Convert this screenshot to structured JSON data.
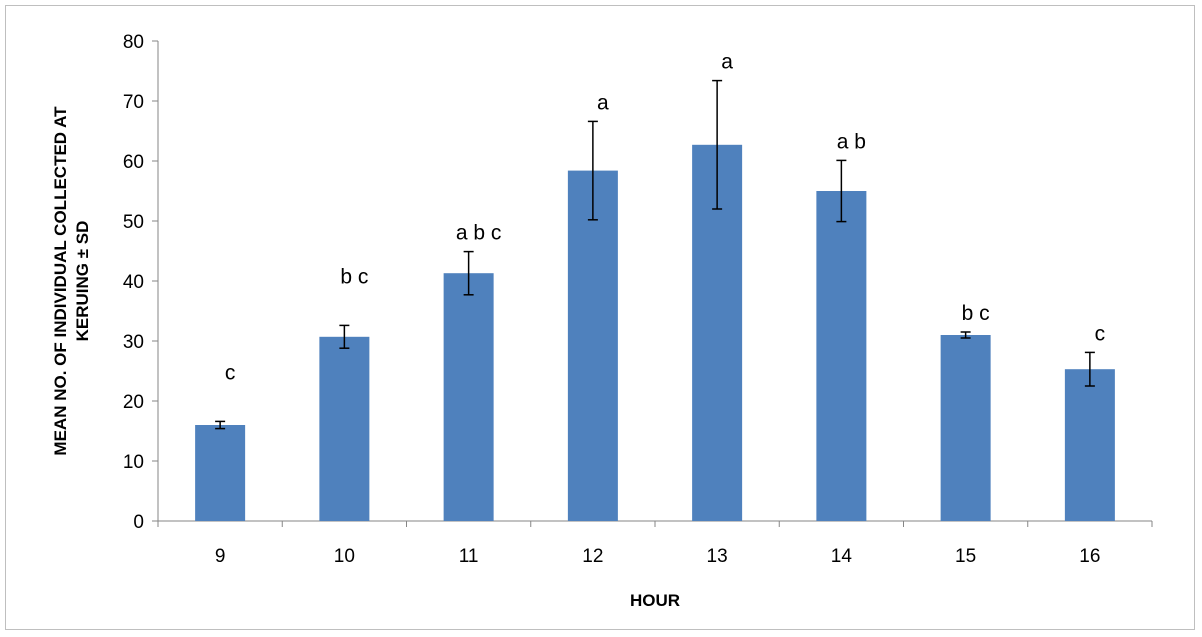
{
  "chart_data": {
    "type": "bar",
    "title": "",
    "xlabel": "HOUR",
    "ylabel_line1": "MEAN NO. OF INDIVIDUAL COLLECTED AT",
    "ylabel_line2": "KERUING ± SD",
    "categories": [
      "9",
      "10",
      "11",
      "12",
      "13",
      "14",
      "15",
      "16"
    ],
    "values": [
      16.0,
      30.7,
      41.3,
      58.4,
      62.7,
      55.0,
      31.0,
      25.3
    ],
    "error": [
      0.6,
      1.9,
      3.6,
      8.2,
      10.7,
      5.1,
      0.5,
      2.8
    ],
    "significance": [
      "c",
      "b c",
      "a b c",
      "a",
      "a",
      "a b",
      "b c",
      "c"
    ],
    "ylim": [
      0,
      80
    ],
    "yticks": [
      0,
      10,
      20,
      30,
      40,
      50,
      60,
      70,
      80
    ],
    "grid": false,
    "legend": "none",
    "bar_color": "#4f81bd"
  }
}
